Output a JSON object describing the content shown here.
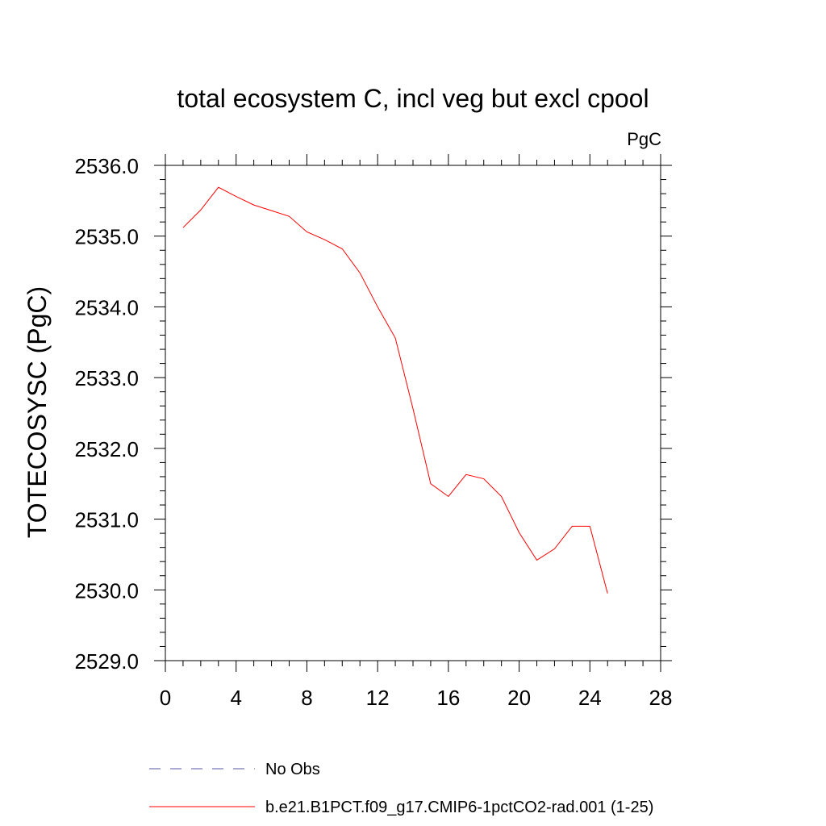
{
  "chart_data": {
    "type": "line",
    "title": "total ecosystem C, incl veg but excl cpool",
    "units_label": "PgC",
    "ylabel": "TOTECOSYSC  (PgC)",
    "xlabel": "",
    "xlim": [
      0,
      28
    ],
    "ylim": [
      2529.0,
      2536.0
    ],
    "xticks": [
      "0",
      "4",
      "8",
      "12",
      "16",
      "20",
      "24",
      "28"
    ],
    "yticks": [
      "2529.0",
      "2530.0",
      "2531.0",
      "2532.0",
      "2533.0",
      "2534.0",
      "2535.0",
      "2536.0"
    ],
    "grid": false,
    "legend_position": "bottom",
    "series": [
      {
        "name": "No Obs",
        "color": "#5555aa",
        "style": "dashed",
        "x": [],
        "y": []
      },
      {
        "name": "b.e21.B1PCT.f09_g17.CMIP6-1pctCO2-rad.001 (1-25)",
        "color": "#ff0000",
        "style": "solid",
        "x": [
          1,
          2,
          3,
          4,
          5,
          6,
          7,
          8,
          9,
          10,
          11,
          12,
          13,
          14,
          15,
          16,
          17,
          18,
          19,
          20,
          21,
          22,
          23,
          24,
          25
        ],
        "y": [
          2535.12,
          2535.37,
          2535.69,
          2535.56,
          2535.44,
          2535.36,
          2535.28,
          2535.06,
          2534.95,
          2534.82,
          2534.48,
          2534.0,
          2533.56,
          2532.56,
          2531.5,
          2531.32,
          2531.63,
          2531.57,
          2531.32,
          2530.81,
          2530.42,
          2530.58,
          2530.9,
          2530.9,
          2529.95
        ]
      }
    ]
  }
}
